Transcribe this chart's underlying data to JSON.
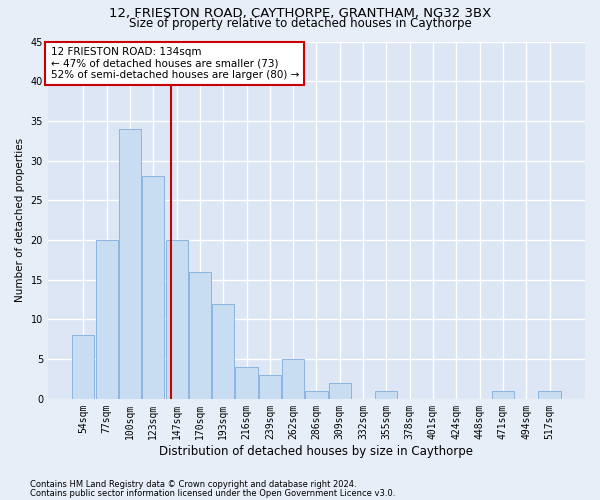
{
  "title1": "12, FRIESTON ROAD, CAYTHORPE, GRANTHAM, NG32 3BX",
  "title2": "Size of property relative to detached houses in Caythorpe",
  "xlabel": "Distribution of detached houses by size in Caythorpe",
  "ylabel": "Number of detached properties",
  "categories": [
    "54sqm",
    "77sqm",
    "100sqm",
    "123sqm",
    "147sqm",
    "170sqm",
    "193sqm",
    "216sqm",
    "239sqm",
    "262sqm",
    "286sqm",
    "309sqm",
    "332sqm",
    "355sqm",
    "378sqm",
    "401sqm",
    "424sqm",
    "448sqm",
    "471sqm",
    "494sqm",
    "517sqm"
  ],
  "values": [
    8,
    20,
    34,
    28,
    20,
    16,
    12,
    4,
    3,
    5,
    1,
    2,
    0,
    1,
    0,
    0,
    0,
    0,
    1,
    0,
    1
  ],
  "bar_color": "#c9ddf2",
  "bar_edge_color": "#8ab4e0",
  "vline_x_index": 3.77,
  "vline_color": "#cc0000",
  "annotation_box_color": "#cc0000",
  "annotation_text_line1": "12 FRIESTON ROAD: 134sqm",
  "annotation_text_line2": "← 47% of detached houses are smaller (73)",
  "annotation_text_line3": "52% of semi-detached houses are larger (80) →",
  "footnote1": "Contains HM Land Registry data © Crown copyright and database right 2024.",
  "footnote2": "Contains public sector information licensed under the Open Government Licence v3.0.",
  "ylim": [
    0,
    45
  ],
  "yticks": [
    0,
    5,
    10,
    15,
    20,
    25,
    30,
    35,
    40,
    45
  ],
  "bg_color": "#e8eef8",
  "plot_bg_color": "#dce6f5",
  "grid_color": "#ffffff",
  "title_fontsize": 9.5,
  "subtitle_fontsize": 8.5,
  "ylabel_fontsize": 7.5,
  "xlabel_fontsize": 8.5,
  "tick_fontsize": 7.0,
  "annot_fontsize": 7.5,
  "footnote_fontsize": 6.0
}
